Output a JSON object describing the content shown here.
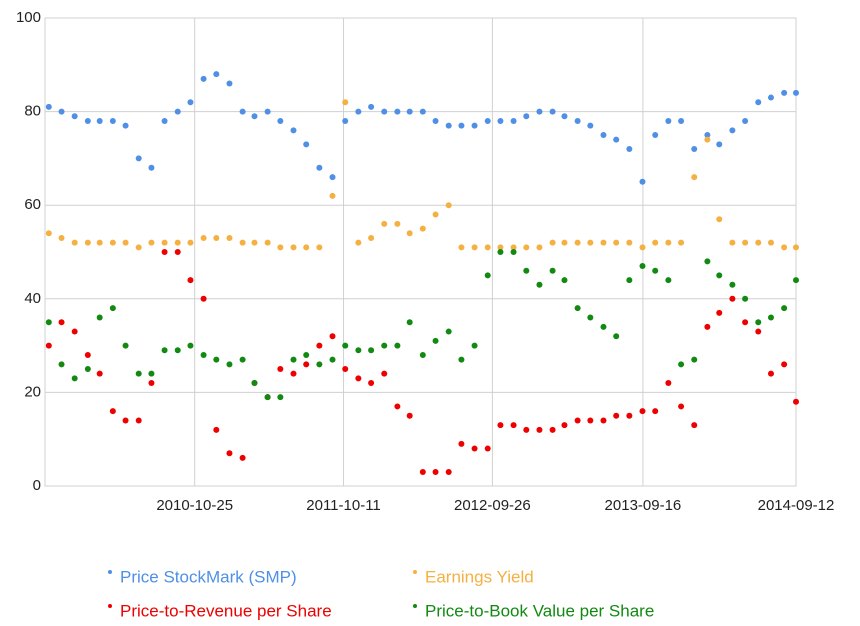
{
  "chart_data": {
    "type": "scatter",
    "x": [
      "2009-11-15",
      "2009-12-15",
      "2010-01-15",
      "2010-02-15",
      "2010-03-15",
      "2010-04-15",
      "2010-05-15",
      "2010-06-15",
      "2010-07-15",
      "2010-08-15",
      "2010-09-15",
      "2010-10-15",
      "2010-11-15",
      "2010-12-15",
      "2011-01-15",
      "2011-02-15",
      "2011-03-15",
      "2011-04-15",
      "2011-05-15",
      "2011-06-15",
      "2011-07-15",
      "2011-08-15",
      "2011-09-15",
      "2011-10-15",
      "2011-11-15",
      "2011-12-15",
      "2012-01-15",
      "2012-02-15",
      "2012-03-15",
      "2012-04-15",
      "2012-05-15",
      "2012-06-15",
      "2012-07-15",
      "2012-08-15",
      "2012-09-15",
      "2012-10-15",
      "2012-11-15",
      "2012-12-15",
      "2013-01-15",
      "2013-02-15",
      "2013-03-15",
      "2013-04-15",
      "2013-05-15",
      "2013-06-15",
      "2013-07-15",
      "2013-08-15",
      "2013-09-15",
      "2013-10-15",
      "2013-11-15",
      "2013-12-15",
      "2014-01-15",
      "2014-02-15",
      "2014-03-15",
      "2014-04-15",
      "2014-05-15",
      "2014-06-15",
      "2014-07-15",
      "2014-08-15",
      "2014-09-12"
    ],
    "series": [
      {
        "name": "Price StockMark (SMP)",
        "color": "#4f8fe6",
        "values": [
          81,
          80,
          79,
          78,
          78,
          78,
          77,
          70,
          68,
          78,
          80,
          82,
          87,
          88,
          86,
          80,
          79,
          80,
          78,
          76,
          73,
          68,
          66,
          78,
          80,
          81,
          80,
          80,
          80,
          80,
          78,
          77,
          77,
          77,
          78,
          78,
          78,
          79,
          80,
          80,
          79,
          78,
          77,
          75,
          74,
          72,
          65,
          75,
          78,
          78,
          72,
          75,
          73,
          76,
          78,
          82,
          83,
          84,
          84
        ]
      },
      {
        "name": "Earnings Yield",
        "color": "#f5b042",
        "values": [
          54,
          53,
          52,
          52,
          52,
          52,
          52,
          51,
          52,
          52,
          52,
          52,
          53,
          53,
          53,
          52,
          52,
          52,
          51,
          51,
          51,
          51,
          62,
          82,
          52,
          53,
          56,
          56,
          54,
          55,
          58,
          60,
          51,
          51,
          51,
          51,
          51,
          51,
          51,
          52,
          52,
          52,
          52,
          52,
          52,
          52,
          51,
          52,
          52,
          52,
          66,
          74,
          57,
          52,
          52,
          52,
          52,
          51,
          51
        ]
      },
      {
        "name": "Price-to-Revenue per Share",
        "color": "#ee0000",
        "values": [
          30,
          35,
          33,
          28,
          24,
          16,
          14,
          14,
          22,
          50,
          50,
          44,
          40,
          12,
          7,
          6,
          22,
          19,
          25,
          24,
          26,
          30,
          32,
          25,
          23,
          22,
          24,
          17,
          15,
          3,
          3,
          3,
          9,
          8,
          8,
          13,
          13,
          12,
          12,
          12,
          13,
          14,
          14,
          14,
          15,
          15,
          16,
          16,
          22,
          17,
          13,
          34,
          37,
          40,
          35,
          33,
          24,
          26,
          18
        ]
      },
      {
        "name": "Price-to-Book Value per Share",
        "color": "#128a12",
        "values": [
          35,
          26,
          23,
          25,
          36,
          38,
          30,
          24,
          24,
          29,
          29,
          30,
          28,
          27,
          26,
          27,
          22,
          19,
          19,
          27,
          28,
          26,
          27,
          30,
          29,
          29,
          30,
          30,
          35,
          28,
          31,
          33,
          27,
          30,
          45,
          50,
          50,
          46,
          43,
          46,
          44,
          38,
          36,
          34,
          32,
          44,
          47,
          46,
          44,
          26,
          27,
          48,
          45,
          43,
          40,
          35,
          36,
          38,
          44
        ]
      }
    ],
    "xlim": [
      "2009-11-06",
      "2014-09-12"
    ],
    "xticks": [
      "2010-10-25",
      "2011-10-11",
      "2012-09-26",
      "2013-09-16",
      "2014-09-12"
    ],
    "ylim": [
      0,
      100
    ],
    "yticks": [
      0,
      20,
      40,
      60,
      80,
      100
    ],
    "grid": true,
    "legend": "bottom"
  }
}
